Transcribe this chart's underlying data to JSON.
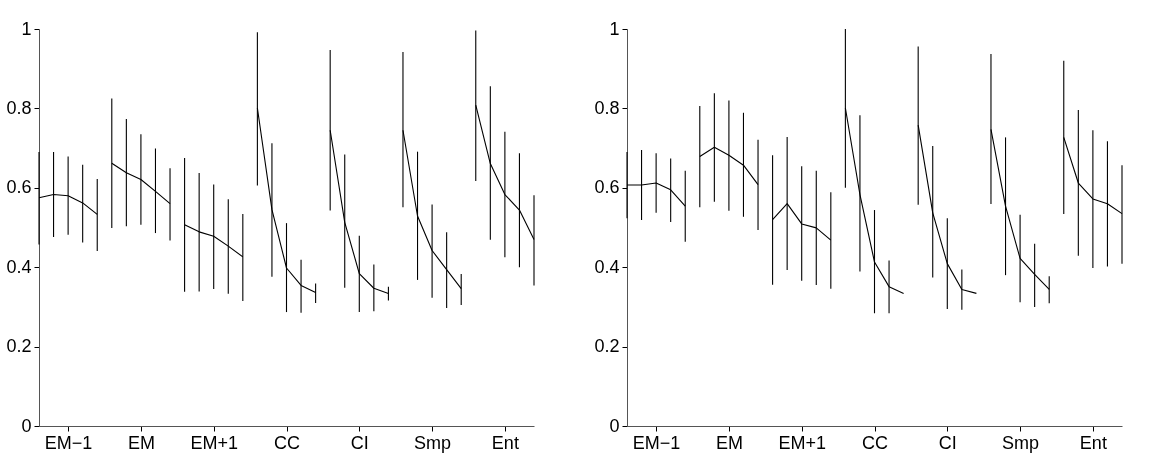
{
  "chart_data": [
    {
      "type": "line",
      "ylim": [
        0,
        1
      ],
      "yticks": [
        0,
        0.2,
        0.4,
        0.6,
        0.8,
        1
      ],
      "grid": false,
      "legend": false,
      "marker": "none",
      "line_style": "solid",
      "categories": [
        null,
        null,
        "EM−1",
        null,
        null,
        null,
        null,
        "EM",
        null,
        null,
        null,
        null,
        "EM+1",
        null,
        null,
        null,
        null,
        "CC",
        null,
        null,
        null,
        null,
        "CI",
        null,
        null,
        null,
        null,
        "Smp",
        null,
        null,
        null,
        null,
        "Ent",
        null,
        null
      ],
      "series": [
        {
          "color": "#000000",
          "values": [
            0.575,
            0.583,
            0.58,
            0.562,
            0.533,
            null,
            null,
            null,
            null,
            null,
            null,
            null,
            null,
            null,
            null,
            null,
            null,
            null,
            null,
            null,
            null,
            null,
            null,
            null,
            null,
            null,
            null,
            null,
            null,
            null,
            null,
            null,
            null,
            null,
            null
          ],
          "errors": [
            [
              0.457,
              0.69
            ],
            [
              0.476,
              0.69
            ],
            [
              0.482,
              0.679
            ],
            [
              0.462,
              0.658
            ],
            [
              0.441,
              0.622
            ],
            null,
            null,
            null,
            null,
            null,
            null,
            null,
            null,
            null,
            null,
            null,
            null,
            null,
            null,
            null,
            null,
            null,
            null,
            null,
            null,
            null,
            null,
            null,
            null,
            null,
            null,
            null,
            null,
            null,
            null
          ]
        },
        {
          "color": "#000000",
          "values": [
            null,
            null,
            null,
            null,
            null,
            0.662,
            0.638,
            0.621,
            0.591,
            0.56,
            null,
            null,
            null,
            null,
            null,
            null,
            null,
            null,
            null,
            null,
            null,
            null,
            null,
            null,
            null,
            null,
            null,
            null,
            null,
            null,
            null,
            null,
            null,
            null,
            null
          ],
          "errors": [
            null,
            null,
            null,
            null,
            null,
            [
              0.499,
              0.825
            ],
            [
              0.503,
              0.773
            ],
            [
              0.507,
              0.735
            ],
            [
              0.486,
              0.699
            ],
            [
              0.467,
              0.649
            ],
            null,
            null,
            null,
            null,
            null,
            null,
            null,
            null,
            null,
            null,
            null,
            null,
            null,
            null,
            null,
            null,
            null,
            null,
            null,
            null,
            null,
            null,
            null,
            null,
            null
          ]
        },
        {
          "color": "#000000",
          "values": [
            null,
            null,
            null,
            null,
            null,
            null,
            null,
            null,
            null,
            null,
            0.507,
            0.489,
            0.478,
            0.453,
            0.426,
            null,
            null,
            null,
            null,
            null,
            null,
            null,
            null,
            null,
            null,
            null,
            null,
            null,
            null,
            null,
            null,
            null,
            null,
            null,
            null
          ],
          "errors": [
            null,
            null,
            null,
            null,
            null,
            null,
            null,
            null,
            null,
            null,
            [
              0.338,
              0.675
            ],
            [
              0.339,
              0.637
            ],
            [
              0.345,
              0.608
            ],
            [
              0.333,
              0.571
            ],
            [
              0.315,
              0.534
            ],
            null,
            null,
            null,
            null,
            null,
            null,
            null,
            null,
            null,
            null,
            null,
            null,
            null,
            null,
            null,
            null,
            null,
            null,
            null,
            null
          ]
        },
        {
          "color": "#000000",
          "values": [
            null,
            null,
            null,
            null,
            null,
            null,
            null,
            null,
            null,
            null,
            null,
            null,
            null,
            null,
            null,
            0.801,
            0.545,
            0.398,
            0.354,
            0.336,
            null,
            null,
            null,
            null,
            null,
            null,
            null,
            null,
            null,
            null,
            null,
            null,
            null,
            null,
            null
          ],
          "errors": [
            null,
            null,
            null,
            null,
            null,
            null,
            null,
            null,
            null,
            null,
            null,
            null,
            null,
            null,
            null,
            [
              0.606,
              0.992
            ],
            [
              0.376,
              0.712
            ],
            [
              0.287,
              0.511
            ],
            [
              0.285,
              0.419
            ],
            [
              0.31,
              0.359
            ],
            null,
            null,
            null,
            null,
            null,
            null,
            null,
            null,
            null,
            null,
            null,
            null,
            null,
            null,
            null
          ]
        },
        {
          "color": "#000000",
          "values": [
            null,
            null,
            null,
            null,
            null,
            null,
            null,
            null,
            null,
            null,
            null,
            null,
            null,
            null,
            null,
            null,
            null,
            null,
            null,
            null,
            0.745,
            0.513,
            0.384,
            0.347,
            0.334,
            null,
            null,
            null,
            null,
            null,
            null,
            null,
            null,
            null,
            null
          ],
          "errors": [
            null,
            null,
            null,
            null,
            null,
            null,
            null,
            null,
            null,
            null,
            null,
            null,
            null,
            null,
            null,
            null,
            null,
            null,
            null,
            null,
            [
              0.543,
              0.947
            ],
            [
              0.348,
              0.684
            ],
            [
              0.287,
              0.479
            ],
            [
              0.289,
              0.407
            ],
            [
              0.316,
              0.351
            ],
            null,
            null,
            null,
            null,
            null,
            null,
            null,
            null,
            null,
            null
          ]
        },
        {
          "color": "#000000",
          "values": [
            null,
            null,
            null,
            null,
            null,
            null,
            null,
            null,
            null,
            null,
            null,
            null,
            null,
            null,
            null,
            null,
            null,
            null,
            null,
            null,
            null,
            null,
            null,
            null,
            null,
            0.745,
            0.529,
            0.442,
            0.394,
            0.346,
            null,
            null,
            null,
            null,
            null
          ],
          "errors": [
            null,
            null,
            null,
            null,
            null,
            null,
            null,
            null,
            null,
            null,
            null,
            null,
            null,
            null,
            null,
            null,
            null,
            null,
            null,
            null,
            null,
            null,
            null,
            null,
            null,
            [
              0.551,
              0.942
            ],
            [
              0.368,
              0.691
            ],
            [
              0.323,
              0.558
            ],
            [
              0.297,
              0.488
            ],
            [
              0.305,
              0.383
            ],
            null,
            null,
            null,
            null,
            null
          ]
        },
        {
          "color": "#000000",
          "values": [
            null,
            null,
            null,
            null,
            null,
            null,
            null,
            null,
            null,
            null,
            null,
            null,
            null,
            null,
            null,
            null,
            null,
            null,
            null,
            null,
            null,
            null,
            null,
            null,
            null,
            null,
            null,
            null,
            null,
            null,
            0.808,
            0.661,
            0.583,
            0.544,
            0.47
          ],
          "errors": [
            null,
            null,
            null,
            null,
            null,
            null,
            null,
            null,
            null,
            null,
            null,
            null,
            null,
            null,
            null,
            null,
            null,
            null,
            null,
            null,
            null,
            null,
            null,
            null,
            null,
            null,
            null,
            null,
            null,
            null,
            [
              0.617,
              0.996
            ],
            [
              0.469,
              0.856
            ],
            [
              0.425,
              0.741
            ],
            [
              0.4,
              0.687
            ],
            [
              0.354,
              0.581
            ]
          ]
        }
      ]
    },
    {
      "type": "line",
      "ylim": [
        0,
        1
      ],
      "yticks": [
        0,
        0.2,
        0.4,
        0.6,
        0.8,
        1
      ],
      "grid": false,
      "legend": false,
      "marker": "none",
      "line_style": "solid",
      "categories": [
        null,
        null,
        "EM−1",
        null,
        null,
        null,
        null,
        "EM",
        null,
        null,
        null,
        null,
        "EM+1",
        null,
        null,
        null,
        null,
        "CC",
        null,
        null,
        null,
        null,
        "CI",
        null,
        null,
        null,
        null,
        "Smp",
        null,
        null,
        null,
        null,
        "Ent",
        null,
        null
      ],
      "series": [
        {
          "color": "#000000",
          "values": [
            0.607,
            0.607,
            0.612,
            0.595,
            0.554,
            null,
            null,
            null,
            null,
            null,
            null,
            null,
            null,
            null,
            null,
            null,
            null,
            null,
            null,
            null,
            null,
            null,
            null,
            null,
            null,
            null,
            null,
            null,
            null,
            null,
            null,
            null,
            null,
            null,
            null
          ],
          "errors": [
            [
              0.523,
              0.69
            ],
            [
              0.519,
              0.695
            ],
            [
              0.537,
              0.687
            ],
            [
              0.514,
              0.674
            ],
            [
              0.464,
              0.643
            ],
            null,
            null,
            null,
            null,
            null,
            null,
            null,
            null,
            null,
            null,
            null,
            null,
            null,
            null,
            null,
            null,
            null,
            null,
            null,
            null,
            null,
            null,
            null,
            null,
            null,
            null,
            null,
            null,
            null,
            null
          ]
        },
        {
          "color": "#000000",
          "values": [
            null,
            null,
            null,
            null,
            null,
            0.679,
            0.702,
            0.682,
            0.657,
            0.608,
            null,
            null,
            null,
            null,
            null,
            null,
            null,
            null,
            null,
            null,
            null,
            null,
            null,
            null,
            null,
            null,
            null,
            null,
            null,
            null,
            null,
            null,
            null,
            null,
            null
          ],
          "errors": [
            null,
            null,
            null,
            null,
            null,
            [
              0.551,
              0.806
            ],
            [
              0.565,
              0.838
            ],
            [
              0.542,
              0.82
            ],
            [
              0.527,
              0.789
            ],
            [
              0.494,
              0.721
            ],
            null,
            null,
            null,
            null,
            null,
            null,
            null,
            null,
            null,
            null,
            null,
            null,
            null,
            null,
            null,
            null,
            null,
            null,
            null,
            null,
            null,
            null,
            null,
            null,
            null
          ]
        },
        {
          "color": "#000000",
          "values": [
            null,
            null,
            null,
            null,
            null,
            null,
            null,
            null,
            null,
            null,
            0.52,
            0.56,
            0.509,
            0.499,
            0.468,
            null,
            null,
            null,
            null,
            null,
            null,
            null,
            null,
            null,
            null,
            null,
            null,
            null,
            null,
            null,
            null,
            null,
            null,
            null,
            null
          ],
          "errors": [
            null,
            null,
            null,
            null,
            null,
            null,
            null,
            null,
            null,
            null,
            [
              0.356,
              0.682
            ],
            [
              0.393,
              0.728
            ],
            [
              0.366,
              0.654
            ],
            [
              0.355,
              0.643
            ],
            [
              0.346,
              0.589
            ],
            null,
            null,
            null,
            null,
            null,
            null,
            null,
            null,
            null,
            null,
            null,
            null,
            null,
            null,
            null,
            null,
            null,
            null,
            null,
            null
          ]
        },
        {
          "color": "#000000",
          "values": [
            null,
            null,
            null,
            null,
            null,
            null,
            null,
            null,
            null,
            null,
            null,
            null,
            null,
            null,
            null,
            0.801,
            0.583,
            0.413,
            0.351,
            0.334,
            null,
            null,
            null,
            null,
            null,
            null,
            null,
            null,
            null,
            null,
            null,
            null,
            null,
            null,
            null
          ],
          "errors": [
            null,
            null,
            null,
            null,
            null,
            null,
            null,
            null,
            null,
            null,
            null,
            null,
            null,
            null,
            null,
            [
              0.6,
              1.0
            ],
            [
              0.389,
              0.783
            ],
            [
              0.284,
              0.544
            ],
            [
              0.284,
              0.417
            ],
            null,
            null,
            null,
            null,
            null,
            null,
            null,
            null,
            null,
            null,
            null,
            null,
            null,
            null,
            null,
            null
          ]
        },
        {
          "color": "#000000",
          "values": [
            null,
            null,
            null,
            null,
            null,
            null,
            null,
            null,
            null,
            null,
            null,
            null,
            null,
            null,
            null,
            null,
            null,
            null,
            null,
            null,
            0.758,
            0.537,
            0.409,
            0.344,
            0.334,
            null,
            null,
            null,
            null,
            null,
            null,
            null,
            null,
            null,
            null
          ],
          "errors": [
            null,
            null,
            null,
            null,
            null,
            null,
            null,
            null,
            null,
            null,
            null,
            null,
            null,
            null,
            null,
            null,
            null,
            null,
            null,
            null,
            [
              0.557,
              0.956
            ],
            [
              0.374,
              0.705
            ],
            [
              0.295,
              0.523
            ],
            [
              0.293,
              0.394
            ],
            null,
            null,
            null,
            null,
            null,
            null,
            null,
            null,
            null,
            null,
            null
          ]
        },
        {
          "color": "#000000",
          "values": [
            null,
            null,
            null,
            null,
            null,
            null,
            null,
            null,
            null,
            null,
            null,
            null,
            null,
            null,
            null,
            null,
            null,
            null,
            null,
            null,
            null,
            null,
            null,
            null,
            null,
            0.747,
            0.554,
            0.422,
            0.382,
            0.344,
            null,
            null,
            null,
            null,
            null
          ],
          "errors": [
            null,
            null,
            null,
            null,
            null,
            null,
            null,
            null,
            null,
            null,
            null,
            null,
            null,
            null,
            null,
            null,
            null,
            null,
            null,
            null,
            null,
            null,
            null,
            null,
            null,
            [
              0.559,
              0.937
            ],
            [
              0.38,
              0.727
            ],
            [
              0.312,
              0.532
            ],
            [
              0.3,
              0.459
            ],
            [
              0.309,
              0.377
            ],
            null,
            null,
            null,
            null,
            null
          ]
        },
        {
          "color": "#000000",
          "values": [
            null,
            null,
            null,
            null,
            null,
            null,
            null,
            null,
            null,
            null,
            null,
            null,
            null,
            null,
            null,
            null,
            null,
            null,
            null,
            null,
            null,
            null,
            null,
            null,
            null,
            null,
            null,
            null,
            null,
            null,
            0.727,
            0.612,
            0.572,
            0.56,
            0.535
          ],
          "errors": [
            null,
            null,
            null,
            null,
            null,
            null,
            null,
            null,
            null,
            null,
            null,
            null,
            null,
            null,
            null,
            null,
            null,
            null,
            null,
            null,
            null,
            null,
            null,
            null,
            null,
            null,
            null,
            null,
            null,
            null,
            [
              0.534,
              0.92
            ],
            [
              0.429,
              0.796
            ],
            [
              0.398,
              0.745
            ],
            [
              0.402,
              0.717
            ],
            [
              0.409,
              0.657
            ]
          ]
        }
      ]
    }
  ]
}
